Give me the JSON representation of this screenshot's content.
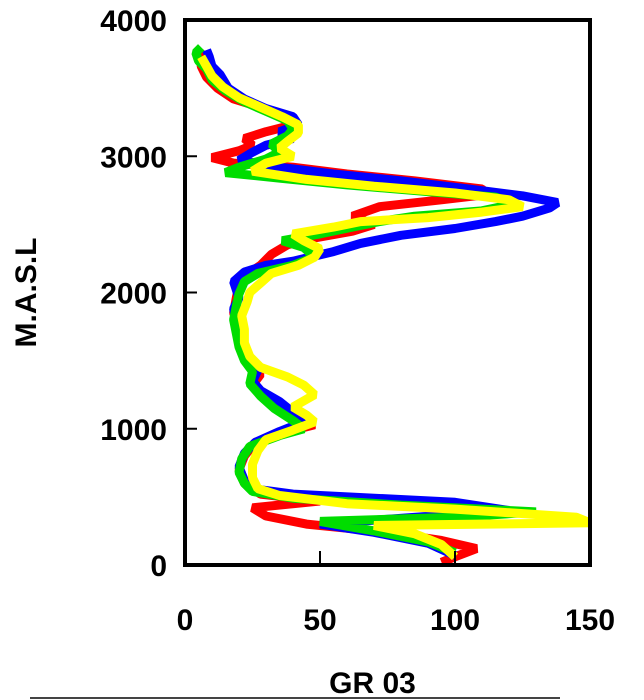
{
  "chart_data": {
    "type": "line",
    "title": "",
    "xlabel": "GR  03",
    "ylabel": "M.A.S.L",
    "xlim": [
      0,
      150
    ],
    "ylim": [
      0,
      4000
    ],
    "x_ticks": [
      "0",
      "50",
      "100",
      "150"
    ],
    "y_ticks": [
      "0",
      "1000",
      "2000",
      "3000",
      "4000"
    ],
    "grid": false,
    "legend": "none",
    "series": [
      {
        "color": "#ff0000",
        "points": [
          [
            95,
            20
          ],
          [
            100,
            60
          ],
          [
            108,
            120
          ],
          [
            95,
            180
          ],
          [
            75,
            240
          ],
          [
            45,
            300
          ],
          [
            30,
            360
          ],
          [
            25,
            420
          ],
          [
            50,
            470
          ],
          [
            28,
            520
          ],
          [
            22,
            600
          ],
          [
            20,
            700
          ],
          [
            22,
            800
          ],
          [
            26,
            900
          ],
          [
            38,
            980
          ],
          [
            48,
            1030
          ],
          [
            40,
            1090
          ],
          [
            32,
            1180
          ],
          [
            28,
            1250
          ],
          [
            25,
            1320
          ],
          [
            28,
            1400
          ],
          [
            25,
            1480
          ],
          [
            23,
            1560
          ],
          [
            21,
            1650
          ],
          [
            20,
            1750
          ],
          [
            18,
            1850
          ],
          [
            19,
            1960
          ],
          [
            20,
            2050
          ],
          [
            22,
            2120
          ],
          [
            28,
            2200
          ],
          [
            32,
            2280
          ],
          [
            38,
            2350
          ],
          [
            48,
            2400
          ],
          [
            62,
            2450
          ],
          [
            70,
            2500
          ],
          [
            62,
            2560
          ],
          [
            72,
            2630
          ],
          [
            95,
            2680
          ],
          [
            112,
            2720
          ],
          [
            110,
            2760
          ],
          [
            85,
            2820
          ],
          [
            60,
            2870
          ],
          [
            40,
            2920
          ],
          [
            18,
            2950
          ],
          [
            10,
            2990
          ],
          [
            20,
            3040
          ],
          [
            25,
            3080
          ],
          [
            22,
            3130
          ],
          [
            30,
            3180
          ],
          [
            40,
            3230
          ],
          [
            35,
            3290
          ],
          [
            28,
            3360
          ],
          [
            18,
            3420
          ],
          [
            12,
            3500
          ],
          [
            8,
            3580
          ],
          [
            6,
            3660
          ],
          [
            6,
            3720
          ],
          [
            8,
            3760
          ]
        ]
      },
      {
        "color": "#0000ff",
        "points": [
          [
            100,
            70
          ],
          [
            90,
            160
          ],
          [
            70,
            240
          ],
          [
            50,
            300
          ],
          [
            120,
            400
          ],
          [
            100,
            460
          ],
          [
            40,
            520
          ],
          [
            25,
            560
          ],
          [
            22,
            620
          ],
          [
            20,
            720
          ],
          [
            22,
            820
          ],
          [
            26,
            900
          ],
          [
            35,
            980
          ],
          [
            44,
            1050
          ],
          [
            40,
            1120
          ],
          [
            35,
            1200
          ],
          [
            28,
            1280
          ],
          [
            25,
            1350
          ],
          [
            27,
            1430
          ],
          [
            25,
            1500
          ],
          [
            22,
            1580
          ],
          [
            20,
            1680
          ],
          [
            19,
            1780
          ],
          [
            18,
            1880
          ],
          [
            20,
            1960
          ],
          [
            18,
            2080
          ],
          [
            22,
            2150
          ],
          [
            30,
            2200
          ],
          [
            40,
            2230
          ],
          [
            55,
            2300
          ],
          [
            65,
            2360
          ],
          [
            80,
            2420
          ],
          [
            100,
            2470
          ],
          [
            115,
            2520
          ],
          [
            125,
            2560
          ],
          [
            135,
            2620
          ],
          [
            138,
            2660
          ],
          [
            125,
            2710
          ],
          [
            105,
            2760
          ],
          [
            80,
            2820
          ],
          [
            55,
            2870
          ],
          [
            35,
            2920
          ],
          [
            20,
            2970
          ],
          [
            25,
            3030
          ],
          [
            30,
            3080
          ],
          [
            40,
            3130
          ],
          [
            35,
            3180
          ],
          [
            42,
            3230
          ],
          [
            40,
            3290
          ],
          [
            30,
            3350
          ],
          [
            22,
            3420
          ],
          [
            16,
            3500
          ],
          [
            13,
            3600
          ],
          [
            10,
            3660
          ],
          [
            9,
            3730
          ],
          [
            8,
            3780
          ]
        ]
      },
      {
        "color": "#00dd00",
        "points": [
          [
            100,
            90
          ],
          [
            90,
            170
          ],
          [
            70,
            250
          ],
          [
            50,
            320
          ],
          [
            100,
            350
          ],
          [
            130,
            390
          ],
          [
            80,
            440
          ],
          [
            40,
            490
          ],
          [
            25,
            540
          ],
          [
            22,
            600
          ],
          [
            20,
            680
          ],
          [
            21,
            780
          ],
          [
            24,
            870
          ],
          [
            35,
            950
          ],
          [
            44,
            1000
          ],
          [
            40,
            1060
          ],
          [
            33,
            1150
          ],
          [
            28,
            1240
          ],
          [
            24,
            1330
          ],
          [
            25,
            1420
          ],
          [
            22,
            1500
          ],
          [
            20,
            1600
          ],
          [
            19,
            1700
          ],
          [
            18,
            1800
          ],
          [
            19,
            1900
          ],
          [
            20,
            1990
          ],
          [
            22,
            2080
          ],
          [
            27,
            2140
          ],
          [
            40,
            2200
          ],
          [
            48,
            2260
          ],
          [
            44,
            2330
          ],
          [
            36,
            2380
          ],
          [
            50,
            2430
          ],
          [
            62,
            2480
          ],
          [
            72,
            2520
          ],
          [
            85,
            2560
          ],
          [
            110,
            2600
          ],
          [
            122,
            2650
          ],
          [
            115,
            2700
          ],
          [
            90,
            2740
          ],
          [
            60,
            2790
          ],
          [
            35,
            2840
          ],
          [
            15,
            2880
          ],
          [
            20,
            2920
          ],
          [
            30,
            2980
          ],
          [
            35,
            3030
          ],
          [
            32,
            3090
          ],
          [
            38,
            3150
          ],
          [
            40,
            3200
          ],
          [
            38,
            3260
          ],
          [
            30,
            3330
          ],
          [
            22,
            3400
          ],
          [
            15,
            3480
          ],
          [
            10,
            3560
          ],
          [
            8,
            3640
          ],
          [
            5,
            3700
          ],
          [
            4,
            3760
          ],
          [
            6,
            3800
          ]
        ]
      },
      {
        "color": "#ffff00",
        "points": [
          [
            100,
            60
          ],
          [
            95,
            150
          ],
          [
            85,
            230
          ],
          [
            70,
            290
          ],
          [
            150,
            310
          ],
          [
            145,
            350
          ],
          [
            100,
            410
          ],
          [
            60,
            450
          ],
          [
            35,
            510
          ],
          [
            27,
            560
          ],
          [
            25,
            640
          ],
          [
            25,
            740
          ],
          [
            27,
            840
          ],
          [
            30,
            920
          ],
          [
            40,
            990
          ],
          [
            48,
            1050
          ],
          [
            45,
            1100
          ],
          [
            40,
            1160
          ],
          [
            48,
            1250
          ],
          [
            44,
            1320
          ],
          [
            38,
            1380
          ],
          [
            28,
            1450
          ],
          [
            24,
            1530
          ],
          [
            22,
            1630
          ],
          [
            22,
            1730
          ],
          [
            21,
            1830
          ],
          [
            23,
            1930
          ],
          [
            24,
            2000
          ],
          [
            28,
            2070
          ],
          [
            32,
            2140
          ],
          [
            42,
            2200
          ],
          [
            48,
            2260
          ],
          [
            50,
            2320
          ],
          [
            44,
            2380
          ],
          [
            40,
            2430
          ],
          [
            55,
            2480
          ],
          [
            65,
            2520
          ],
          [
            90,
            2550
          ],
          [
            110,
            2590
          ],
          [
            125,
            2630
          ],
          [
            120,
            2680
          ],
          [
            100,
            2730
          ],
          [
            70,
            2780
          ],
          [
            45,
            2830
          ],
          [
            25,
            2890
          ],
          [
            30,
            2950
          ],
          [
            40,
            3000
          ],
          [
            35,
            3060
          ],
          [
            38,
            3110
          ],
          [
            42,
            3170
          ],
          [
            42,
            3230
          ],
          [
            36,
            3290
          ],
          [
            28,
            3360
          ],
          [
            20,
            3430
          ],
          [
            14,
            3510
          ],
          [
            10,
            3590
          ],
          [
            8,
            3660
          ],
          [
            6,
            3730
          ]
        ]
      }
    ]
  }
}
